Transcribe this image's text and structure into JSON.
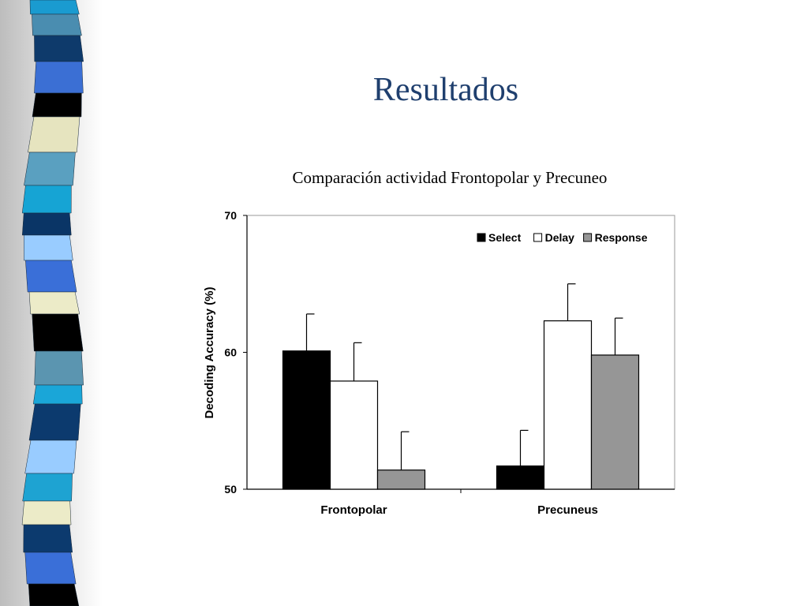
{
  "slide": {
    "title": "Resultados"
  },
  "chart_data": {
    "type": "bar",
    "title": "Comparación actividad Frontopolar y Precuneo",
    "xlabel": "",
    "ylabel": "Decoding Accuracy (%)",
    "ylim": [
      50,
      70
    ],
    "yticks": [
      "50",
      "60",
      "70"
    ],
    "categories": [
      "Frontopolar",
      "Precuneus"
    ],
    "series": [
      {
        "name": "Select",
        "color": "#000000",
        "values": [
          60.1,
          51.7
        ],
        "errors": [
          2.7,
          2.6
        ]
      },
      {
        "name": "Delay",
        "color": "#ffffff",
        "values": [
          57.9,
          62.3
        ],
        "errors": [
          2.8,
          2.7
        ]
      },
      {
        "name": "Response",
        "color": "#969696",
        "values": [
          51.4,
          59.8
        ],
        "errors": [
          2.8,
          2.7
        ]
      }
    ],
    "legend_position": "top-right",
    "grid": false
  }
}
